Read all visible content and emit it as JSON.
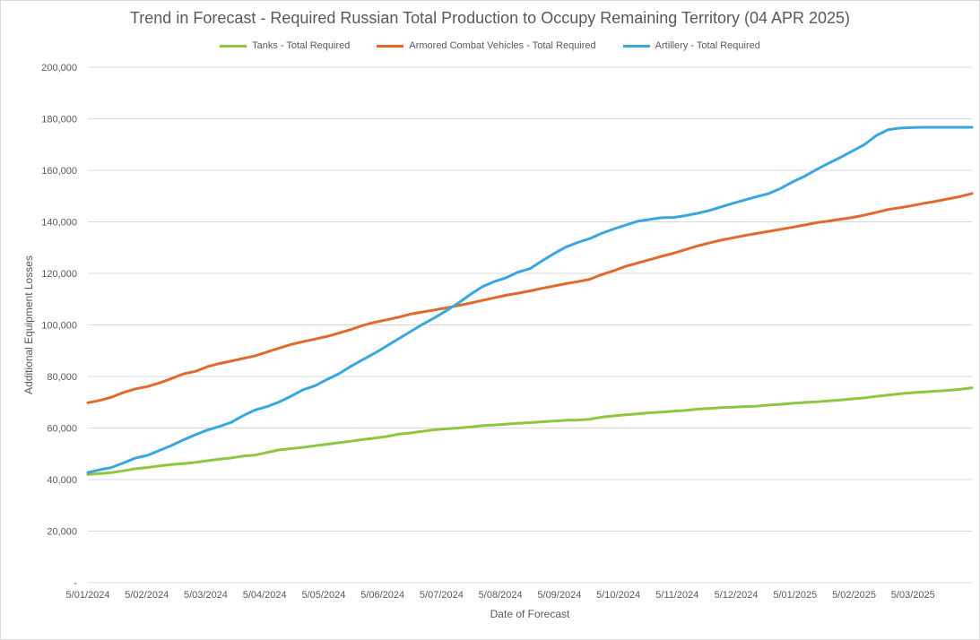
{
  "chart_data": {
    "type": "line",
    "title": "Trend in Forecast - Required Russian Total Production to Occupy Remaining Territory (04 APR 2025)",
    "xlabel": "Date of Forecast",
    "ylabel": "Additional Equipment Losses",
    "ylim": [
      0,
      200000
    ],
    "yticks": [
      "-",
      "20,000",
      "40,000",
      "60,000",
      "80,000",
      "100,000",
      "120,000",
      "140,000",
      "160,000",
      "180,000",
      "200,000"
    ],
    "xticks": [
      "5/01/2024",
      "5/02/2024",
      "5/03/2024",
      "5/04/2024",
      "5/05/2024",
      "5/06/2024",
      "5/07/2024",
      "5/08/2024",
      "5/09/2024",
      "5/10/2024",
      "5/11/2024",
      "5/12/2024",
      "5/01/2025",
      "5/02/2025",
      "5/03/2025"
    ],
    "grid": true,
    "legend": "top",
    "series": [
      {
        "name": "Tanks - Total Required",
        "color": "#8dc63f",
        "values": [
          42000,
          42300,
          42700,
          43400,
          44200,
          44700,
          45300,
          45800,
          46200,
          46700,
          47300,
          47900,
          48400,
          49100,
          49500,
          50500,
          51500,
          52000,
          52500,
          53100,
          53700,
          54300,
          54900,
          55500,
          56100,
          56700,
          57600,
          58100,
          58700,
          59300,
          59700,
          60000,
          60400,
          60900,
          61200,
          61500,
          61800,
          62100,
          62400,
          62700,
          63000,
          63100,
          63400,
          64200,
          64700,
          65100,
          65500,
          65900,
          66200,
          66500,
          66800,
          67300,
          67600,
          67900,
          68100,
          68300,
          68500,
          68900,
          69200,
          69600,
          69900,
          70200,
          70500,
          70900,
          71300,
          71700,
          72300,
          72800,
          73300,
          73700,
          74000,
          74300,
          74600,
          75000,
          75600
        ]
      },
      {
        "name": "Armored Combat Vehicles - Total Required",
        "color": "#e06a2c",
        "values": [
          69800,
          70700,
          72000,
          73800,
          75200,
          76100,
          77500,
          79200,
          81000,
          82000,
          83800,
          85000,
          86000,
          87000,
          88000,
          89500,
          91000,
          92400,
          93500,
          94500,
          95500,
          96800,
          98200,
          99800,
          101000,
          102000,
          103000,
          104200,
          105000,
          105800,
          106600,
          107500,
          108500,
          109500,
          110500,
          111500,
          112300,
          113200,
          114200,
          115100,
          116000,
          116800,
          117700,
          119500,
          121000,
          122700,
          124000,
          125300,
          126600,
          127800,
          129200,
          130600,
          131800,
          132900,
          133800,
          134700,
          135500,
          136300,
          137100,
          137900,
          138800,
          139700,
          140300,
          141000,
          141700,
          142600,
          143700,
          144800,
          145500,
          146300,
          147200,
          148000,
          148900,
          149800,
          151000
        ]
      },
      {
        "name": "Artillery - Total Required",
        "color": "#3aa5df",
        "values": [
          42700,
          43800,
          44700,
          46500,
          48400,
          49400,
          51300,
          53200,
          55400,
          57400,
          59200,
          60600,
          62200,
          64800,
          67000,
          68300,
          70100,
          72300,
          74800,
          76400,
          78800,
          81000,
          83900,
          86500,
          89000,
          91800,
          94600,
          97400,
          100200,
          102700,
          105500,
          108500,
          111800,
          114800,
          116800,
          118300,
          120500,
          121800,
          124800,
          127600,
          130200,
          132000,
          133500,
          135500,
          137200,
          138700,
          140200,
          140900,
          141600,
          141700,
          142400,
          143300,
          144400,
          145800,
          147200,
          148500,
          149800,
          151000,
          153000,
          155500,
          157700,
          160300,
          162700,
          165000,
          167500,
          170000,
          173500,
          175800,
          176400,
          176600,
          176700,
          176700,
          176700,
          176700,
          176700
        ]
      }
    ]
  }
}
